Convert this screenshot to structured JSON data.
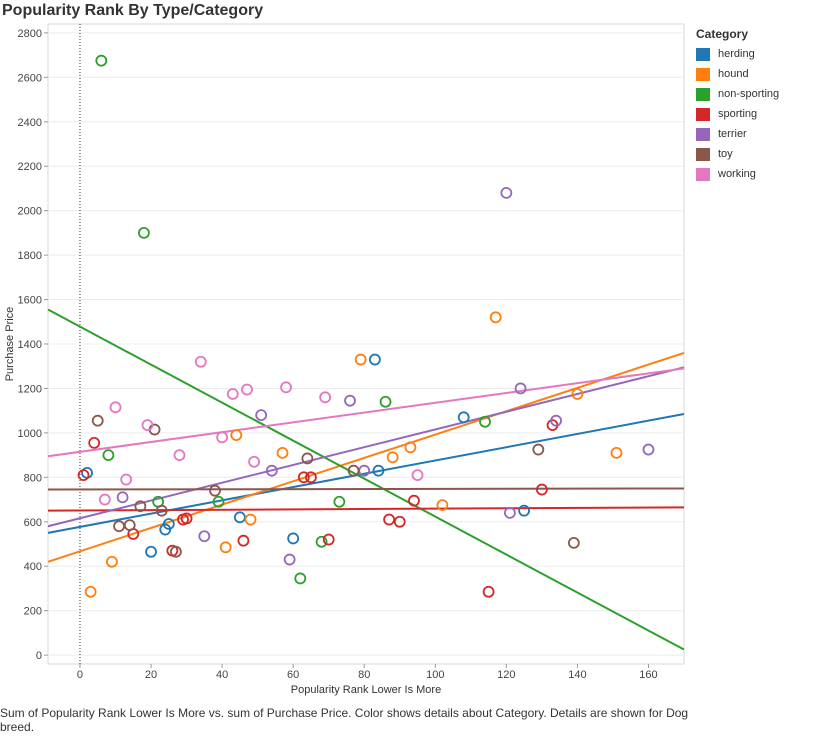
{
  "caption": "Sum of Popularity Rank Lower Is More vs. sum of Purchase Price.  Color shows details about Category.  Details are shown for Dog breed.",
  "legend": {
    "title": "Category",
    "items": [
      {
        "label": "herding",
        "color": "#1f77b4"
      },
      {
        "label": "hound",
        "color": "#ff7f0e"
      },
      {
        "label": "non-sporting",
        "color": "#2ca02c"
      },
      {
        "label": "sporting",
        "color": "#d62728"
      },
      {
        "label": "terrier",
        "color": "#9467bd"
      },
      {
        "label": "toy",
        "color": "#8c564b"
      },
      {
        "label": "working",
        "color": "#e377c2"
      }
    ]
  },
  "chart_data": {
    "type": "scatter",
    "title": "Popularity Rank By Type/Category",
    "xlabel": "Popularity Rank Lower Is More",
    "ylabel": "Purchase Price",
    "xlim": [
      -9,
      170
    ],
    "ylim": [
      -40,
      2840
    ],
    "xticks": [
      0,
      20,
      40,
      60,
      80,
      100,
      120,
      140,
      160
    ],
    "yticks": [
      0,
      200,
      400,
      600,
      800,
      1000,
      1200,
      1400,
      1600,
      1800,
      2000,
      2200,
      2400,
      2600,
      2800
    ],
    "grid": true,
    "legend_position": "right",
    "series": [
      {
        "name": "herding",
        "color": "#1f77b4",
        "points": [
          [
            2,
            820
          ],
          [
            20,
            465
          ],
          [
            24,
            565
          ],
          [
            25,
            590
          ],
          [
            45,
            620
          ],
          [
            60,
            525
          ],
          [
            84,
            830
          ],
          [
            83,
            1330
          ],
          [
            108,
            1070
          ],
          [
            125,
            650
          ]
        ],
        "trend": [
          [
            -9,
            550
          ],
          [
            170,
            1085
          ]
        ]
      },
      {
        "name": "hound",
        "color": "#ff7f0e",
        "points": [
          [
            3,
            285
          ],
          [
            9,
            420
          ],
          [
            41,
            485
          ],
          [
            44,
            990
          ],
          [
            48,
            610
          ],
          [
            57,
            910
          ],
          [
            79,
            1330
          ],
          [
            88,
            890
          ],
          [
            93,
            935
          ],
          [
            102,
            675
          ],
          [
            117,
            1520
          ],
          [
            140,
            1175
          ],
          [
            151,
            910
          ]
        ],
        "trend": [
          [
            -9,
            420
          ],
          [
            170,
            1360
          ]
        ]
      },
      {
        "name": "non-sporting",
        "color": "#2ca02c",
        "points": [
          [
            6,
            2675
          ],
          [
            8,
            900
          ],
          [
            18,
            1900
          ],
          [
            22,
            690
          ],
          [
            39,
            690
          ],
          [
            62,
            345
          ],
          [
            68,
            510
          ],
          [
            73,
            690
          ],
          [
            86,
            1140
          ],
          [
            114,
            1050
          ]
        ],
        "trend": [
          [
            -9,
            1555
          ],
          [
            170,
            25
          ]
        ]
      },
      {
        "name": "sporting",
        "color": "#d62728",
        "points": [
          [
            1,
            810
          ],
          [
            4,
            955
          ],
          [
            15,
            545
          ],
          [
            26,
            470
          ],
          [
            29,
            610
          ],
          [
            30,
            615
          ],
          [
            46,
            515
          ],
          [
            63,
            800
          ],
          [
            65,
            800
          ],
          [
            70,
            520
          ],
          [
            87,
            610
          ],
          [
            90,
            600
          ],
          [
            94,
            695
          ],
          [
            115,
            285
          ],
          [
            130,
            745
          ],
          [
            133,
            1035
          ]
        ],
        "trend": [
          [
            -9,
            650
          ],
          [
            170,
            665
          ]
        ]
      },
      {
        "name": "terrier",
        "color": "#9467bd",
        "points": [
          [
            12,
            710
          ],
          [
            35,
            535
          ],
          [
            51,
            1080
          ],
          [
            54,
            830
          ],
          [
            59,
            430
          ],
          [
            76,
            1145
          ],
          [
            80,
            830
          ],
          [
            120,
            2080
          ],
          [
            121,
            640
          ],
          [
            124,
            1200
          ],
          [
            134,
            1055
          ],
          [
            160,
            925
          ]
        ],
        "trend": [
          [
            -9,
            580
          ],
          [
            170,
            1295
          ]
        ]
      },
      {
        "name": "toy",
        "color": "#8c564b",
        "points": [
          [
            5,
            1055
          ],
          [
            11,
            580
          ],
          [
            14,
            585
          ],
          [
            17,
            670
          ],
          [
            21,
            1015
          ],
          [
            23,
            650
          ],
          [
            27,
            465
          ],
          [
            38,
            740
          ],
          [
            64,
            885
          ],
          [
            77,
            830
          ],
          [
            129,
            925
          ],
          [
            139,
            505
          ]
        ],
        "trend": [
          [
            -9,
            745
          ],
          [
            170,
            750
          ]
        ]
      },
      {
        "name": "working",
        "color": "#e377c2",
        "points": [
          [
            7,
            700
          ],
          [
            10,
            1115
          ],
          [
            13,
            790
          ],
          [
            19,
            1035
          ],
          [
            28,
            900
          ],
          [
            34,
            1320
          ],
          [
            40,
            980
          ],
          [
            43,
            1175
          ],
          [
            47,
            1195
          ],
          [
            49,
            870
          ],
          [
            58,
            1205
          ],
          [
            69,
            1160
          ],
          [
            95,
            810
          ]
        ],
        "trend": [
          [
            -9,
            895
          ],
          [
            170,
            1290
          ]
        ]
      }
    ]
  }
}
